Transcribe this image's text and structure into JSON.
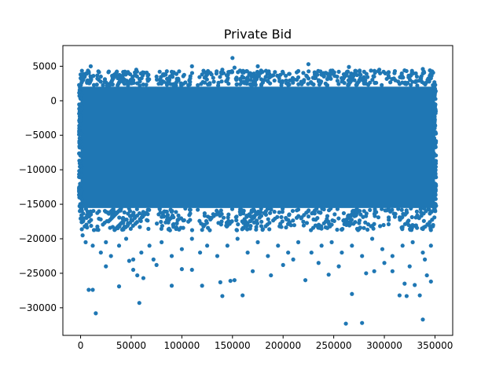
{
  "chart_data": {
    "type": "scatter",
    "title": "Private Bid",
    "xlabel": "",
    "ylabel": "",
    "xlim": [
      -17500,
      367500
    ],
    "ylim": [
      -34000,
      8000
    ],
    "xticks": [
      0,
      50000,
      100000,
      150000,
      200000,
      250000,
      300000,
      350000
    ],
    "xtick_labels": [
      "0",
      "50000",
      "100000",
      "150000",
      "200000",
      "250000",
      "300000",
      "350000"
    ],
    "yticks": [
      5000,
      0,
      -5000,
      -10000,
      -15000,
      -20000,
      -25000,
      -30000
    ],
    "ytick_labels": [
      "5000",
      "0",
      "−5000",
      "−10000",
      "−15000",
      "−20000",
      "−25000",
      "−30000"
    ],
    "grid": false,
    "legend": "none",
    "marker_color": "#1f77b4",
    "dense_band": {
      "x_range": [
        0,
        350000
      ],
      "y_range": [
        -16000,
        2500
      ],
      "note": "approximately 350000 points forming a solid band"
    },
    "series": [
      {
        "points": [
          [
            0,
            3800
          ],
          [
            8000,
            4200
          ],
          [
            10000,
            5000
          ],
          [
            20000,
            3500
          ],
          [
            35000,
            3700
          ],
          [
            45000,
            4000
          ],
          [
            55000,
            4500
          ],
          [
            75000,
            3500
          ],
          [
            90000,
            4200
          ],
          [
            110000,
            5000
          ],
          [
            125000,
            3800
          ],
          [
            140000,
            4500
          ],
          [
            150000,
            6200
          ],
          [
            152000,
            4800
          ],
          [
            175000,
            5000
          ],
          [
            185000,
            3900
          ],
          [
            200000,
            4000
          ],
          [
            215000,
            4300
          ],
          [
            225000,
            5300
          ],
          [
            240000,
            4000
          ],
          [
            255000,
            4200
          ],
          [
            265000,
            4900
          ],
          [
            280000,
            4200
          ],
          [
            295000,
            4500
          ],
          [
            310000,
            4000
          ],
          [
            320000,
            4400
          ],
          [
            338000,
            4600
          ],
          [
            345000,
            4400
          ],
          [
            2000,
            -19500
          ],
          [
            5000,
            -20500
          ],
          [
            12000,
            -21000
          ],
          [
            20000,
            -22000
          ],
          [
            25000,
            -20500
          ],
          [
            30000,
            -22500
          ],
          [
            38000,
            -21000
          ],
          [
            45000,
            -20000
          ],
          [
            52000,
            -23000
          ],
          [
            60000,
            -22000
          ],
          [
            68000,
            -21000
          ],
          [
            72000,
            -23000
          ],
          [
            80000,
            -20500
          ],
          [
            90000,
            -22500
          ],
          [
            100000,
            -21500
          ],
          [
            110000,
            -20000
          ],
          [
            118000,
            -22000
          ],
          [
            125000,
            -21000
          ],
          [
            135000,
            -22500
          ],
          [
            145000,
            -21000
          ],
          [
            155000,
            -20000
          ],
          [
            165000,
            -22000
          ],
          [
            175000,
            -20500
          ],
          [
            185000,
            -22500
          ],
          [
            195000,
            -21000
          ],
          [
            205000,
            -22000
          ],
          [
            215000,
            -20500
          ],
          [
            228000,
            -22000
          ],
          [
            238000,
            -21000
          ],
          [
            248000,
            -20500
          ],
          [
            258000,
            -22000
          ],
          [
            268000,
            -21000
          ],
          [
            278000,
            -22500
          ],
          [
            288000,
            -20000
          ],
          [
            298000,
            -21500
          ],
          [
            308000,
            -22500
          ],
          [
            318000,
            -21000
          ],
          [
            328000,
            -20500
          ],
          [
            338000,
            -22000
          ],
          [
            346000,
            -21000
          ],
          [
            8000,
            -27400
          ],
          [
            12000,
            -27400
          ],
          [
            15000,
            -30800
          ],
          [
            25000,
            -24000
          ],
          [
            38000,
            -26900
          ],
          [
            48000,
            -23200
          ],
          [
            52000,
            -24500
          ],
          [
            56000,
            -25300
          ],
          [
            58000,
            -29300
          ],
          [
            62000,
            -25700
          ],
          [
            75000,
            -23800
          ],
          [
            90000,
            -26800
          ],
          [
            100000,
            -24400
          ],
          [
            110000,
            -24500
          ],
          [
            120000,
            -26800
          ],
          [
            138000,
            -26300
          ],
          [
            140000,
            -28300
          ],
          [
            148000,
            -26100
          ],
          [
            152000,
            -26000
          ],
          [
            160000,
            -28200
          ],
          [
            170000,
            -24700
          ],
          [
            188000,
            -25300
          ],
          [
            200000,
            -23800
          ],
          [
            210000,
            -23000
          ],
          [
            222000,
            -26000
          ],
          [
            235000,
            -23500
          ],
          [
            245000,
            -25200
          ],
          [
            255000,
            -24000
          ],
          [
            262000,
            -32300
          ],
          [
            268000,
            -28000
          ],
          [
            278000,
            -32200
          ],
          [
            282000,
            -25000
          ],
          [
            290000,
            -24700
          ],
          [
            300000,
            -23500
          ],
          [
            308000,
            -24700
          ],
          [
            315000,
            -28200
          ],
          [
            320000,
            -26500
          ],
          [
            322000,
            -28300
          ],
          [
            330000,
            -26700
          ],
          [
            335000,
            -28200
          ],
          [
            338000,
            -31700
          ],
          [
            342000,
            -25300
          ],
          [
            346000,
            -26200
          ],
          [
            340000,
            -23000
          ],
          [
            325000,
            -24000
          ]
        ]
      }
    ]
  }
}
